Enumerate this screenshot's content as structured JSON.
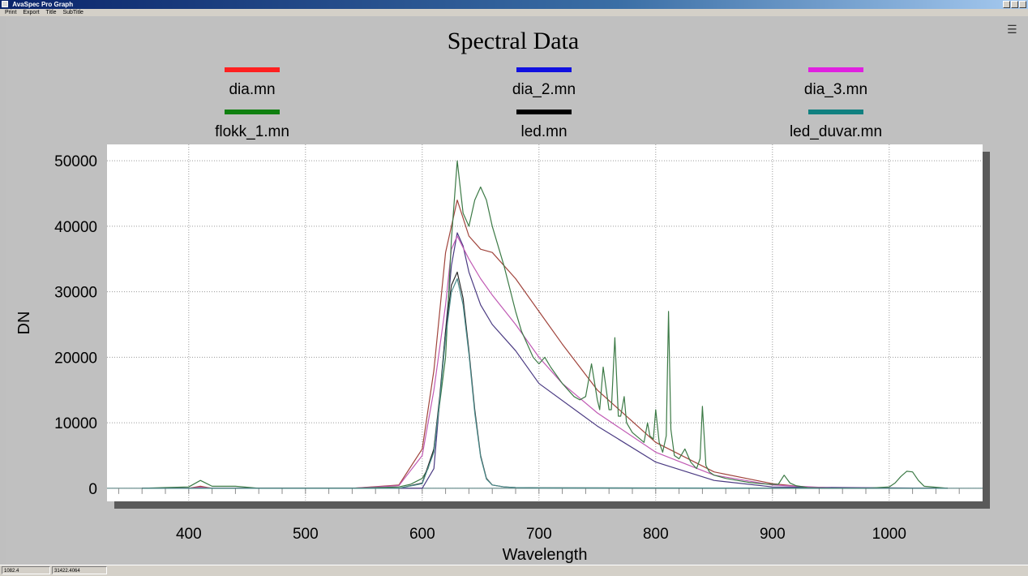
{
  "window": {
    "title": "AvaSpec Pro Graph",
    "menu": [
      "Print",
      "Export",
      "Title",
      "SubTitle"
    ]
  },
  "statusbar": {
    "cell1": "1082.4",
    "cell2": "31422.4064"
  },
  "icons": {
    "legend_toggle": "list-icon"
  },
  "chart_data": {
    "type": "line",
    "title": "Spectral Data",
    "xlabel": "Wavelength",
    "ylabel": "DN",
    "xlim": [
      330,
      1080
    ],
    "ylim": [
      -2000,
      52500
    ],
    "xticks": [
      400,
      500,
      600,
      700,
      800,
      900,
      1000
    ],
    "yticks": [
      0,
      10000,
      20000,
      30000,
      40000,
      50000
    ],
    "grid": true,
    "legend_position": "top",
    "series": [
      {
        "name": "dia.mn",
        "color": "#a0443c",
        "x": [
          360,
          400,
          410,
          420,
          460,
          540,
          580,
          600,
          610,
          620,
          630,
          640,
          650,
          660,
          680,
          700,
          720,
          750,
          800,
          850,
          900,
          930,
          940,
          1050
        ],
        "y": [
          0,
          0,
          300,
          0,
          0,
          0,
          500,
          6000,
          18000,
          36000,
          44000,
          38500,
          36500,
          36000,
          32000,
          27000,
          22000,
          15000,
          7000,
          2500,
          700,
          150,
          0,
          0
        ]
      },
      {
        "name": "dia_2.mn",
        "color": "#4a3a82",
        "x": [
          360,
          600,
          610,
          620,
          625,
          630,
          635,
          640,
          650,
          660,
          680,
          700,
          750,
          800,
          850,
          900,
          1050
        ],
        "y": [
          0,
          0,
          3000,
          24000,
          34000,
          39000,
          37000,
          33000,
          28000,
          25000,
          21000,
          16000,
          9500,
          4000,
          1200,
          200,
          0
        ]
      },
      {
        "name": "dia_3.mn",
        "color": "#c05ab4",
        "x": [
          360,
          400,
          410,
          420,
          460,
          540,
          580,
          600,
          610,
          620,
          625,
          630,
          640,
          650,
          660,
          680,
          700,
          720,
          750,
          800,
          850,
          900,
          950,
          1050
        ],
        "y": [
          0,
          0,
          150,
          0,
          0,
          0,
          400,
          5000,
          15000,
          28000,
          36500,
          38500,
          35000,
          32000,
          29500,
          25000,
          20000,
          16000,
          11500,
          5500,
          2000,
          500,
          50,
          0
        ]
      },
      {
        "name": "flokk_1.mn",
        "color": "#3c7a46",
        "x": [
          360,
          380,
          400,
          410,
          420,
          440,
          460,
          540,
          580,
          590,
          600,
          605,
          610,
          620,
          625,
          630,
          635,
          640,
          645,
          650,
          655,
          660,
          670,
          680,
          685,
          690,
          695,
          700,
          705,
          710,
          720,
          730,
          735,
          740,
          745,
          750,
          752,
          755,
          760,
          762,
          765,
          768,
          770,
          773,
          775,
          780,
          790,
          793,
          795,
          798,
          800,
          803,
          806,
          809,
          811,
          813,
          816,
          820,
          825,
          830,
          835,
          838,
          840,
          843,
          846,
          850,
          860,
          870,
          880,
          890,
          900,
          905,
          910,
          915,
          920,
          930,
          960,
          980,
          1000,
          1005,
          1010,
          1015,
          1020,
          1025,
          1030,
          1050
        ],
        "y": [
          0,
          100,
          200,
          1200,
          300,
          300,
          0,
          0,
          200,
          600,
          1500,
          3000,
          6000,
          20000,
          38000,
          50000,
          42000,
          40000,
          44000,
          46000,
          44000,
          40000,
          34000,
          27000,
          24000,
          22000,
          20000,
          19000,
          20000,
          18500,
          16000,
          14000,
          13500,
          14000,
          19000,
          13500,
          12000,
          18500,
          12000,
          12000,
          23000,
          11000,
          11000,
          14000,
          10000,
          8500,
          7000,
          10000,
          8000,
          7500,
          12000,
          7000,
          5500,
          8000,
          27000,
          9000,
          5000,
          4500,
          6000,
          4000,
          3000,
          4500,
          12500,
          3500,
          2500,
          2000,
          1500,
          1200,
          900,
          700,
          600,
          600,
          2000,
          800,
          400,
          100,
          0,
          0,
          200,
          800,
          1800,
          2600,
          2500,
          1200,
          300,
          0
        ]
      },
      {
        "name": "led.mn",
        "color": "#2a2a2a",
        "x": [
          360,
          580,
          600,
          610,
          615,
          620,
          625,
          630,
          635,
          640,
          645,
          650,
          655,
          660,
          670,
          680,
          700,
          1050
        ],
        "y": [
          0,
          0,
          800,
          6000,
          14000,
          24000,
          31000,
          33000,
          29000,
          21000,
          12000,
          5000,
          1500,
          500,
          200,
          100,
          50,
          0
        ]
      },
      {
        "name": "led_duvar.mn",
        "color": "#4a8a8a",
        "x": [
          360,
          580,
          600,
          610,
          615,
          620,
          625,
          630,
          635,
          640,
          645,
          650,
          655,
          660,
          670,
          680,
          700,
          1050
        ],
        "y": [
          0,
          0,
          700,
          5500,
          13500,
          23000,
          30000,
          32000,
          28000,
          20500,
          11500,
          4800,
          1400,
          500,
          200,
          100,
          50,
          0
        ]
      }
    ],
    "legend_swatches": [
      "#ff2020",
      "#1010e0",
      "#e020e0",
      "#108010",
      "#000000",
      "#108080"
    ]
  }
}
